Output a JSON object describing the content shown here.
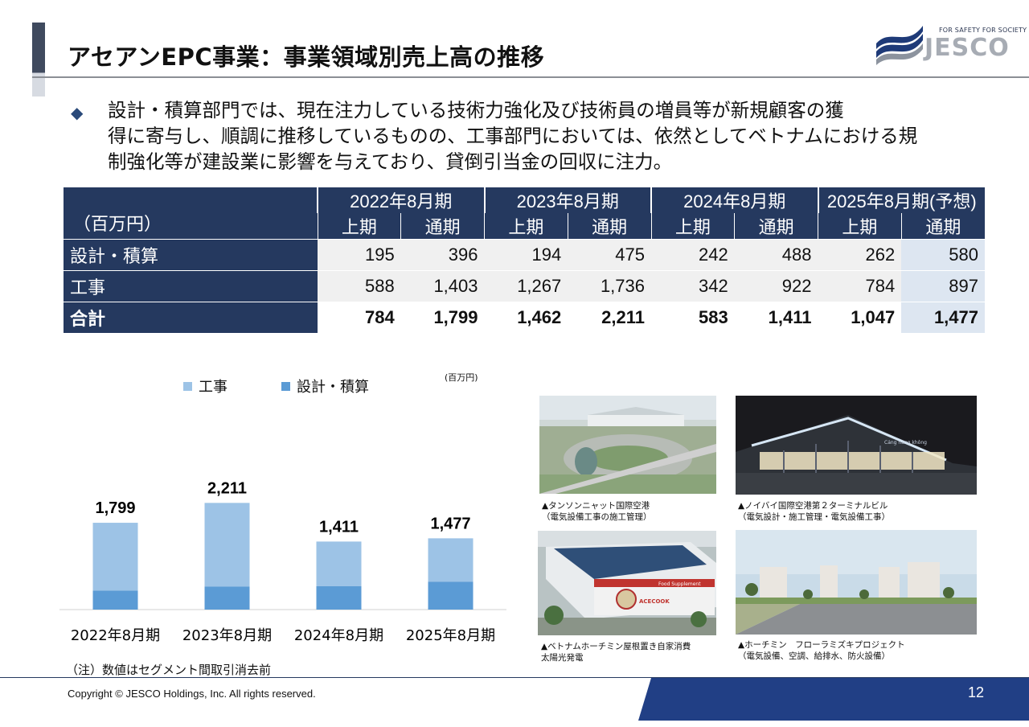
{
  "header": {
    "title": "アセアンEPC事業：事業領域別売上高の推移",
    "logo_tagline": "FOR SAFETY FOR SOCIETY",
    "logo_word": "JESCO"
  },
  "bullet": {
    "marker": "◆",
    "text": "設計・積算部門では、現在注力している技術力強化及び技術員の増員等が新規顧客の獲\n得に寄与し、順調に推移しているものの、工事部門においては、依然としてベトナムにおける規\n制強化等が建設業に影響を与えており、貸倒引当金の回収に注力。"
  },
  "table": {
    "unit_label": "（百万円）",
    "years": [
      "2022年8月期",
      "2023年8月期",
      "2024年8月期",
      "2025年8月期(予想)"
    ],
    "sub_headers": [
      "上期",
      "通期",
      "上期",
      "通期",
      "上期",
      "通期",
      "上期",
      "通期"
    ],
    "rows": [
      {
        "label": "設計・積算",
        "values": [
          "195",
          "396",
          "194",
          "475",
          "242",
          "488",
          "262",
          "580"
        ]
      },
      {
        "label": "工事",
        "values": [
          "588",
          "1,403",
          "1,267",
          "1,736",
          "342",
          "922",
          "784",
          "897"
        ]
      },
      {
        "label": "合計",
        "values": [
          "784",
          "1,799",
          "1,462",
          "2,211",
          "583",
          "1,411",
          "1,047",
          "1,477"
        ]
      }
    ]
  },
  "chart_data": {
    "type": "bar",
    "stacked": true,
    "unit": "(百万円)",
    "categories": [
      "2022年8月期",
      "2023年8月期",
      "2024年8月期",
      "2025年8月期"
    ],
    "series": [
      {
        "name": "設計・積算",
        "values": [
          396,
          475,
          488,
          580
        ],
        "color": "#5b9bd5"
      },
      {
        "name": "工事",
        "values": [
          1403,
          1736,
          922,
          897
        ],
        "color": "#9dc3e6"
      }
    ],
    "totals": [
      "1,799",
      "2,211",
      "1,411",
      "1,477"
    ],
    "legend_order": [
      "工事",
      "設計・積算"
    ],
    "legend_position": "top",
    "grid": false,
    "ylim": [
      0,
      2500
    ]
  },
  "chart_note": "（注）数値はセグメント間取引消去前",
  "photos": [
    {
      "caption": "▲タンソンニャット国際空港\n（電気設備工事の施工管理）"
    },
    {
      "caption": "▲ノイバイ国際空港第２ターミナルビル\n（電気設計・施工管理・電気設備工事）"
    },
    {
      "caption": "▲ベトナムホーチミン屋根置き自家消費\n太陽光発電"
    },
    {
      "caption": "▲ホーチミン　フローラミズキプロジェクト\n（電気設備、空調、給排水、防火設備）"
    }
  ],
  "photo_signs": {
    "factory_banner": "Food Supplement",
    "factory_name": "ACECOOK",
    "airport_sign": "Cảng hàng không"
  },
  "footer": {
    "copyright": "Copyright © JESCO Holdings, Inc.  All rights reserved.",
    "page_number": "12"
  }
}
